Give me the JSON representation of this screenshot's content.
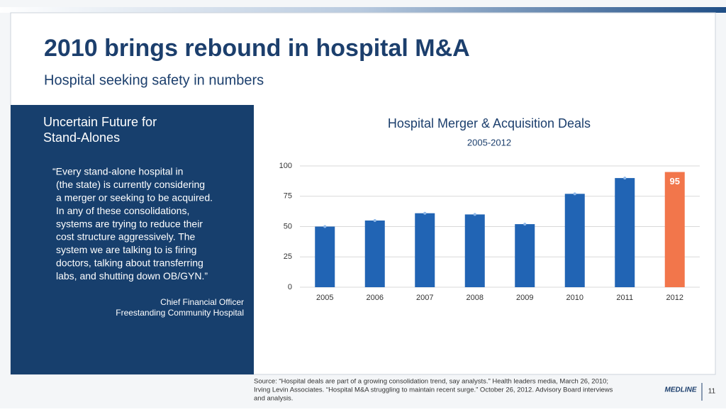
{
  "slide": {
    "title": "2010 brings rebound in hospital M&A",
    "subtitle": "Hospital seeking safety in numbers",
    "panel_heading": [
      "Uncertain Future for",
      "Stand-Alones"
    ],
    "quote": [
      "“Every stand-alone hospital in",
      "(the state) is currently considering",
      "a merger or seeking to be acquired.",
      "In any of these consolidations,",
      "systems are trying to reduce their",
      "cost structure aggressively. The",
      "system we are talking to is firing",
      "doctors, talking about transferring",
      "labs, and shutting down OB/GYN.”"
    ],
    "attribution": [
      "Chief Financial Officer",
      "Freestanding Community Hospital"
    ],
    "source": [
      "Source: “Hospital deals are part of a growing consolidation trend, say analysts.”  Health leaders media, March 26, 2010;",
      "Irving Levin Associates. “Hospital M&A struggling to maintain recent surge.” October 26, 2012. Advisory Board interviews",
      "and analysis."
    ],
    "logo": "MEDLINE",
    "page_number": "11"
  },
  "chart_data": {
    "type": "bar",
    "title": "Hospital Merger & Acquisition Deals",
    "subtitle": "2005-2012",
    "categories": [
      "2005",
      "2006",
      "2007",
      "2008",
      "2009",
      "2010",
      "2011",
      "2012"
    ],
    "values": [
      50,
      55,
      61,
      60,
      52,
      77,
      90,
      95
    ],
    "value_labels": [
      null,
      null,
      null,
      null,
      null,
      null,
      null,
      "95"
    ],
    "colors": [
      "#2164b4",
      "#2164b4",
      "#2164b4",
      "#2164b4",
      "#2164b4",
      "#2164b4",
      "#2164b4",
      "#f2764b"
    ],
    "ylim": [
      0,
      100
    ],
    "yticks": [
      0,
      25,
      50,
      75,
      100
    ],
    "grid": true
  }
}
